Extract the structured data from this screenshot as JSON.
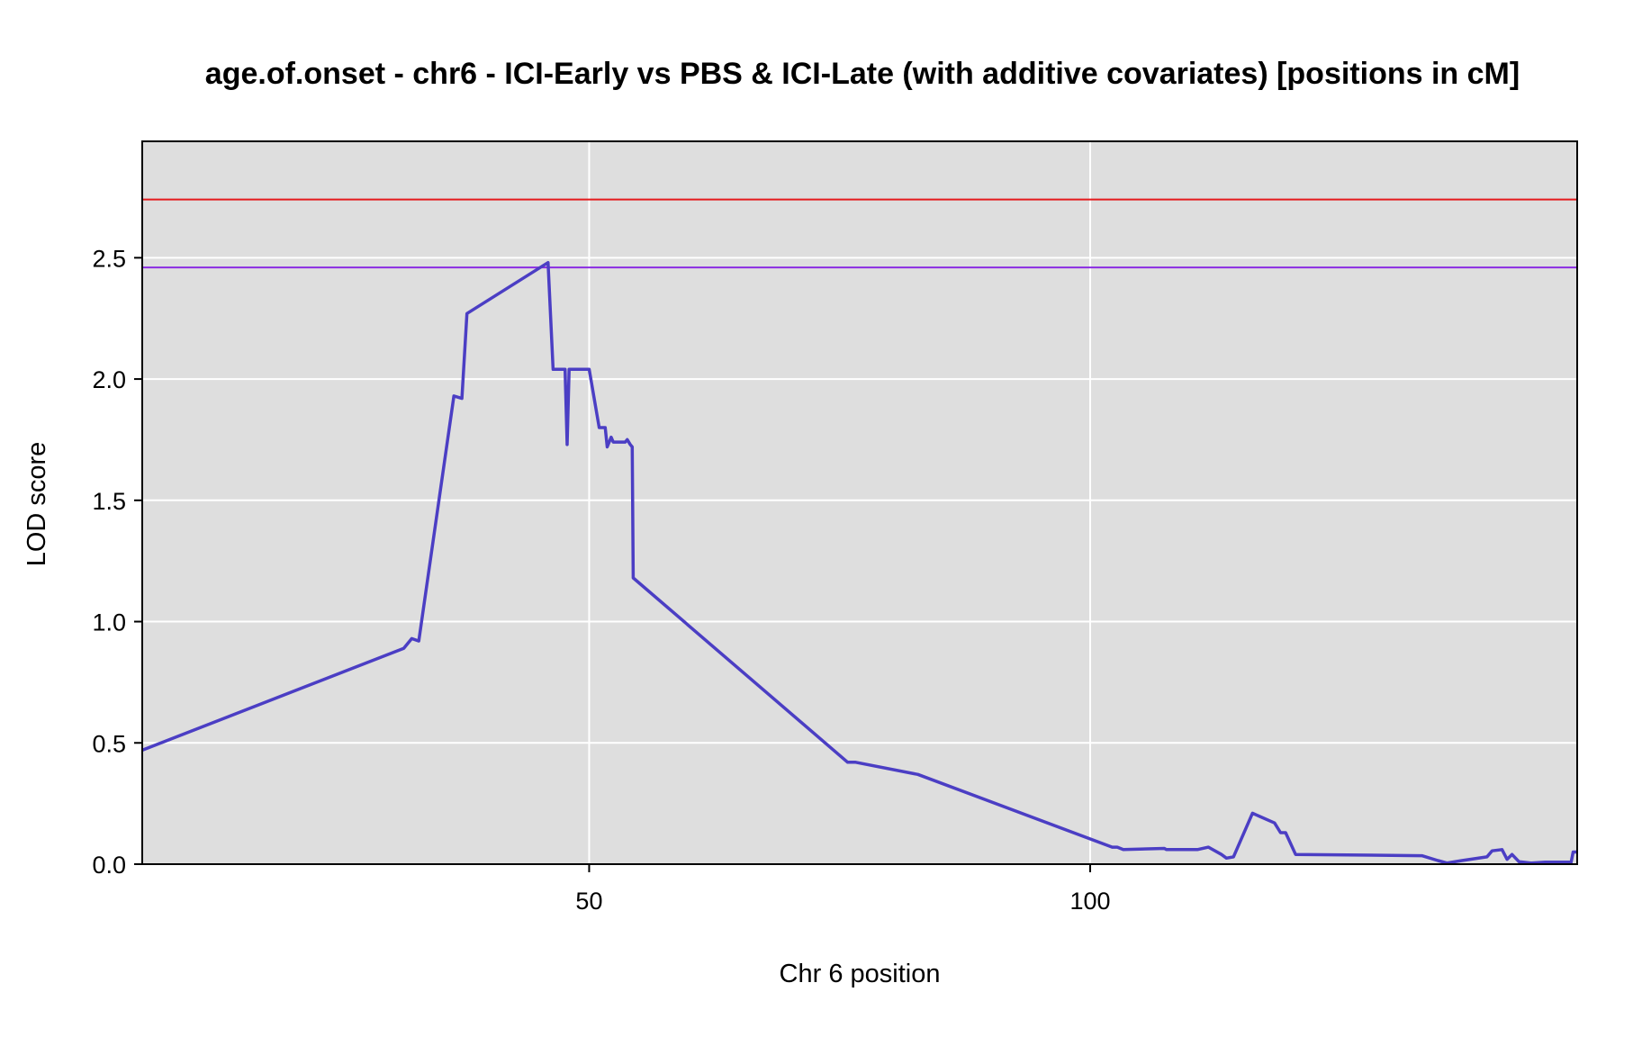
{
  "chart_data": {
    "type": "line",
    "title": "age.of.onset - chr6 - ICI-Early vs PBS & ICI-Late (with additive covariates) [positions in cM]",
    "xlabel": "Chr 6 position",
    "ylabel": "LOD score",
    "xlim": [
      5.4,
      148.6
    ],
    "ylim": [
      0,
      2.98
    ],
    "x_ticks": [
      50,
      100
    ],
    "x_tick_labels": [
      "50",
      "100"
    ],
    "y_ticks": [
      0,
      0.5,
      1,
      1.5,
      2,
      2.5
    ],
    "y_tick_labels": [
      "0.0",
      "0.5",
      "1.0",
      "1.5",
      "2.0",
      "2.5"
    ],
    "grid": true,
    "plot_background": "#DEDEDE",
    "grid_color": "#FFFFFF",
    "thresholds": [
      {
        "value": 2.74,
        "color": "#E41A1C"
      },
      {
        "value": 2.46,
        "color": "#8A2BE2"
      }
    ],
    "series": [
      {
        "color": "#4B3EC4",
        "points": [
          [
            5.4,
            0.47
          ],
          [
            31.5,
            0.89
          ],
          [
            32.3,
            0.93
          ],
          [
            33.0,
            0.92
          ],
          [
            36.5,
            1.93
          ],
          [
            37.3,
            1.92
          ],
          [
            37.8,
            2.27
          ],
          [
            45.9,
            2.48
          ],
          [
            46.4,
            2.04
          ],
          [
            47.6,
            2.04
          ],
          [
            47.8,
            1.73
          ],
          [
            48.0,
            2.04
          ],
          [
            50.0,
            2.04
          ],
          [
            51.0,
            1.8
          ],
          [
            51.6,
            1.8
          ],
          [
            51.8,
            1.72
          ],
          [
            52.2,
            1.76
          ],
          [
            52.4,
            1.74
          ],
          [
            53.6,
            1.74
          ],
          [
            53.8,
            1.75
          ],
          [
            54.1,
            1.73
          ],
          [
            54.3,
            1.72
          ],
          [
            54.4,
            1.18
          ],
          [
            75.8,
            0.42
          ],
          [
            76.6,
            0.42
          ],
          [
            82.8,
            0.37
          ],
          [
            102.2,
            0.07
          ],
          [
            102.7,
            0.07
          ],
          [
            103.3,
            0.06
          ],
          [
            107.4,
            0.065
          ],
          [
            107.6,
            0.06
          ],
          [
            110.7,
            0.06
          ],
          [
            111.8,
            0.07
          ],
          [
            113.1,
            0.04
          ],
          [
            113.6,
            0.025
          ],
          [
            114.3,
            0.03
          ],
          [
            116.2,
            0.21
          ],
          [
            118.4,
            0.17
          ],
          [
            119.0,
            0.13
          ],
          [
            119.5,
            0.13
          ],
          [
            120.5,
            0.04
          ],
          [
            133.1,
            0.035
          ],
          [
            134.7,
            0.015
          ],
          [
            135.6,
            0.005
          ],
          [
            137.1,
            0.015
          ],
          [
            139.6,
            0.03
          ],
          [
            140.1,
            0.055
          ],
          [
            141.1,
            0.06
          ],
          [
            141.6,
            0.02
          ],
          [
            142.1,
            0.04
          ],
          [
            142.8,
            0.01
          ],
          [
            144.0,
            0.005
          ],
          [
            145.4,
            0.008
          ],
          [
            148.0,
            0.008
          ],
          [
            148.2,
            0.05
          ],
          [
            148.6,
            0.05
          ]
        ]
      }
    ]
  }
}
